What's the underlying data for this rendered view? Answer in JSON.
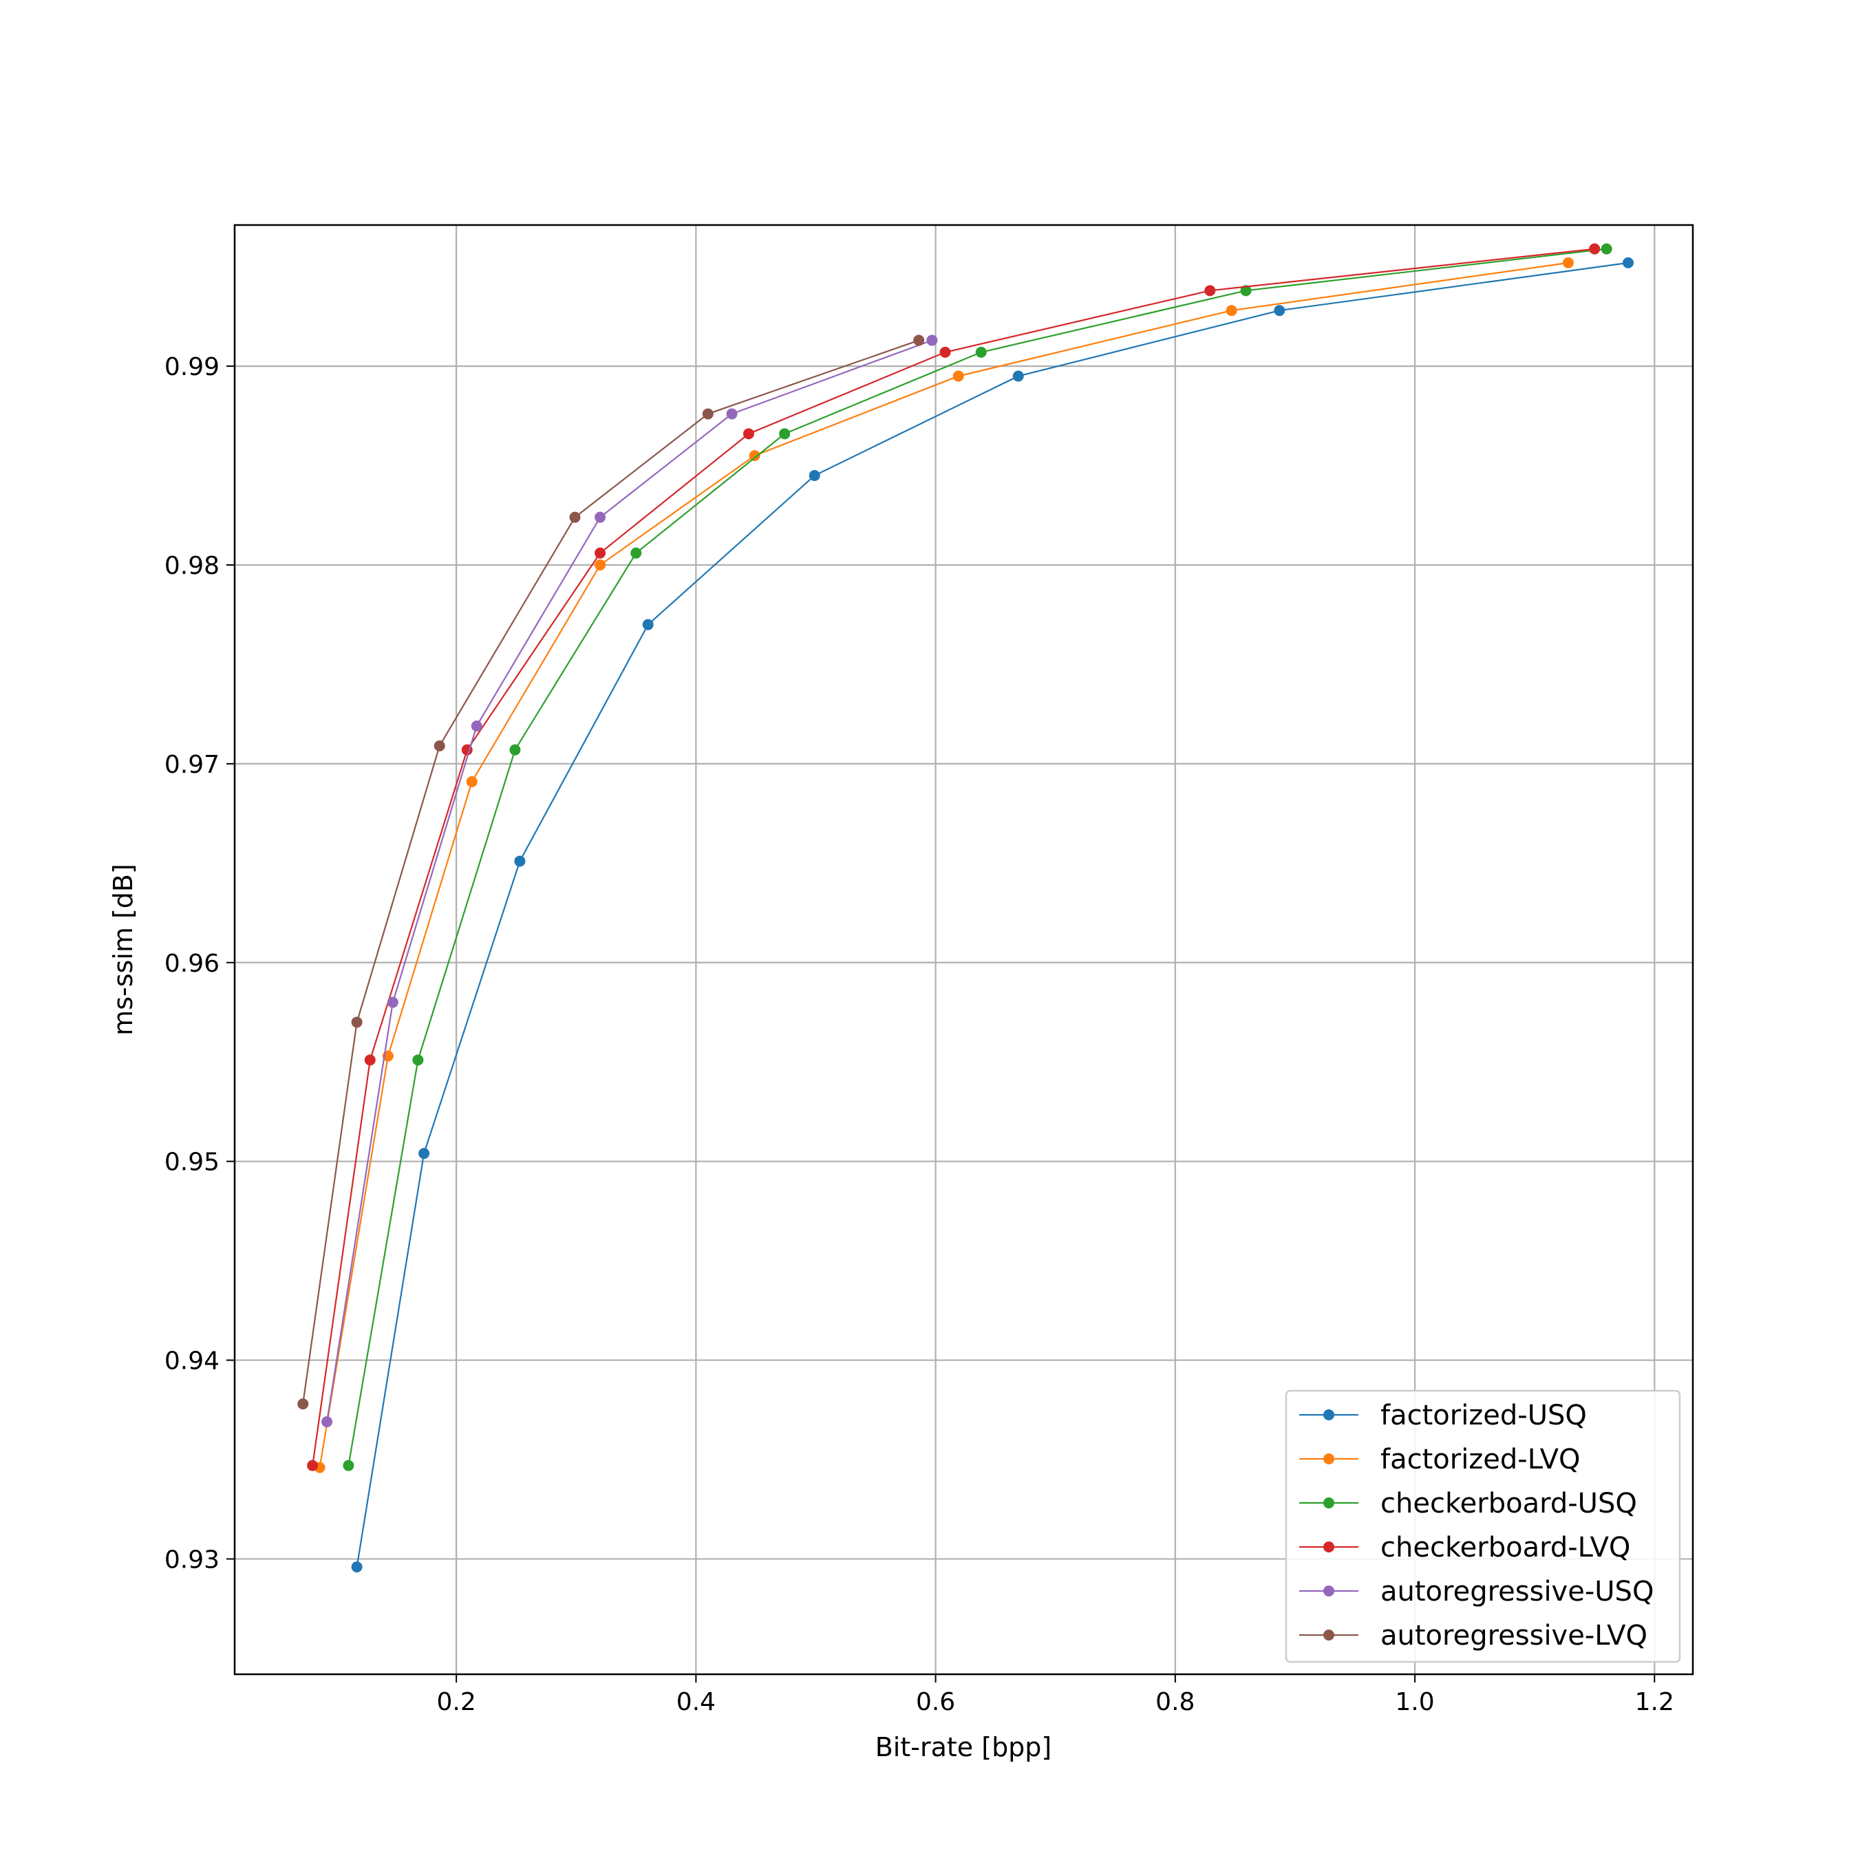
{
  "chart_data": {
    "type": "line",
    "xlabel": "Bit-rate [bpp]",
    "ylabel": "ms-ssim [dB]",
    "xlim": [
      0.015,
      1.232
    ],
    "ylim": [
      0.9242,
      0.9971
    ],
    "x_ticks": [
      0.2,
      0.4,
      0.6,
      0.8,
      1.0,
      1.2
    ],
    "x_tick_labels": [
      "0.2",
      "0.4",
      "0.6",
      "0.8",
      "1.0",
      "1.2"
    ],
    "y_ticks": [
      0.93,
      0.94,
      0.95,
      0.96,
      0.97,
      0.98,
      0.99
    ],
    "y_tick_labels": [
      "0.93",
      "0.94",
      "0.95",
      "0.96",
      "0.97",
      "0.98",
      "0.99"
    ],
    "grid": true,
    "legend_position": "bottom-right",
    "series": [
      {
        "name": "factorized-USQ",
        "color": "#1f77b4",
        "x": [
          0.117,
          0.173,
          0.253,
          0.36,
          0.499,
          0.669,
          0.887,
          1.178
        ],
        "y": [
          0.9296,
          0.9504,
          0.9651,
          0.977,
          0.9845,
          0.9895,
          0.9928,
          0.9952
        ]
      },
      {
        "name": "factorized-LVQ",
        "color": "#ff7f0e",
        "x": [
          0.086,
          0.143,
          0.213,
          0.32,
          0.449,
          0.619,
          0.847,
          1.128
        ],
        "y": [
          0.9346,
          0.9553,
          0.9691,
          0.98,
          0.9855,
          0.9895,
          0.9928,
          0.9952
        ]
      },
      {
        "name": "checkerboard-USQ",
        "color": "#2ca02c",
        "x": [
          0.11,
          0.168,
          0.249,
          0.35,
          0.474,
          0.638,
          0.859,
          1.16
        ],
        "y": [
          0.9347,
          0.9551,
          0.9707,
          0.9806,
          0.9866,
          0.9907,
          0.9938,
          0.9959
        ]
      },
      {
        "name": "checkerboard-LVQ",
        "color": "#d62728",
        "x": [
          0.08,
          0.128,
          0.209,
          0.32,
          0.444,
          0.608,
          0.829,
          1.15
        ],
        "y": [
          0.9347,
          0.9551,
          0.9707,
          0.9806,
          0.9866,
          0.9907,
          0.9938,
          0.9959
        ]
      },
      {
        "name": "autoregressive-USQ",
        "color": "#9467bd",
        "x": [
          0.092,
          0.147,
          0.217,
          0.32,
          0.43,
          0.597
        ],
        "y": [
          0.9369,
          0.958,
          0.9719,
          0.9824,
          0.9876,
          0.9913
        ]
      },
      {
        "name": "autoregressive-LVQ",
        "color": "#8c564b",
        "x": [
          0.072,
          0.117,
          0.186,
          0.299,
          0.41,
          0.586
        ],
        "y": [
          0.9378,
          0.957,
          0.9709,
          0.9824,
          0.9876,
          0.9913
        ]
      }
    ]
  }
}
